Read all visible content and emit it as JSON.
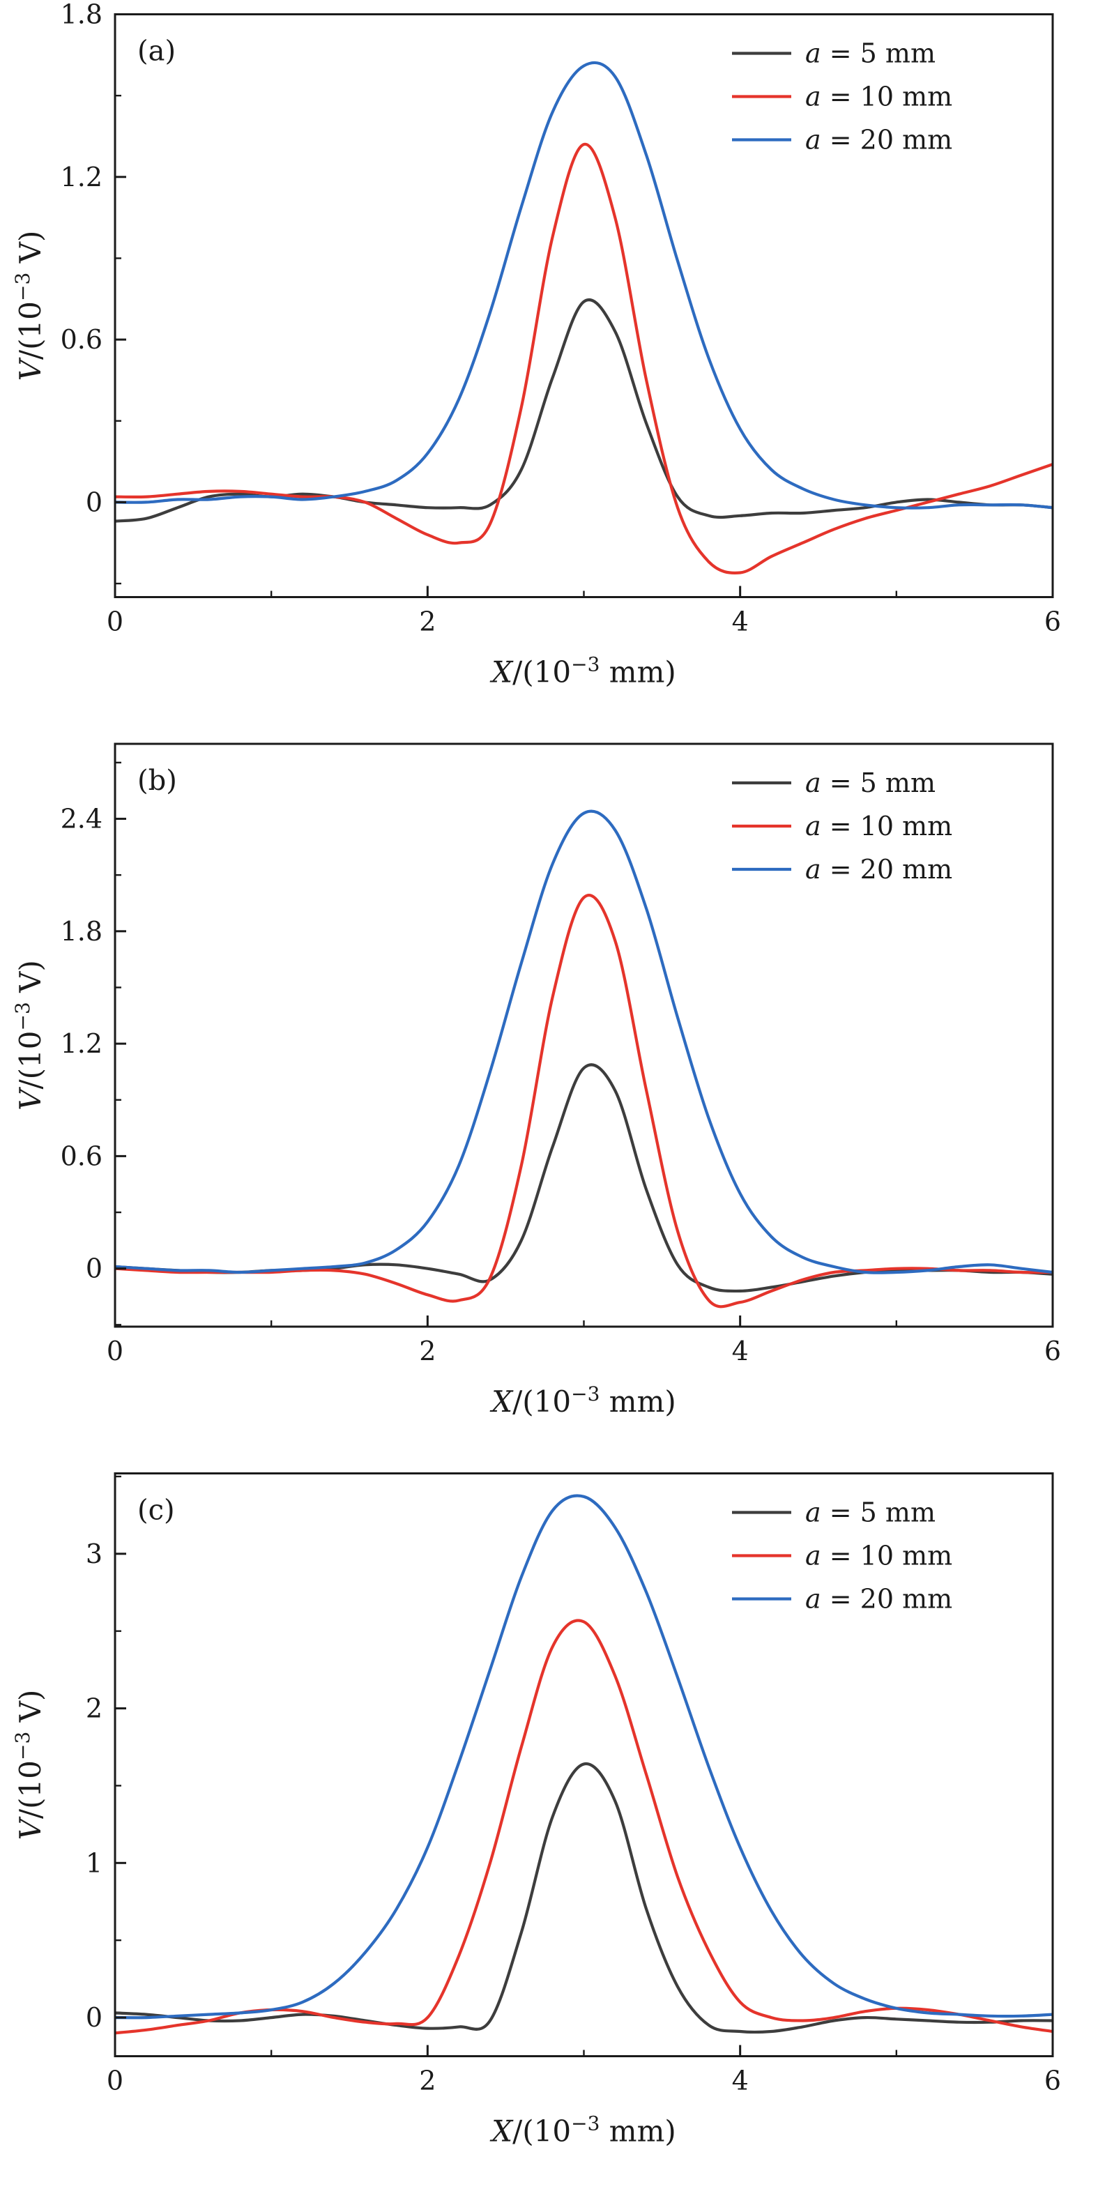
{
  "figure": {
    "background": "#ffffff",
    "frame_color": "#1a1a1a",
    "text_color": "#1a1a1a",
    "series_colors": {
      "a5": "#3d3d3d",
      "a10": "#e5342b",
      "a20": "#2d6bc0"
    }
  },
  "chart_data": [
    {
      "type": "line",
      "panel_label": "(a)",
      "xlabel": "X/(10⁻³ mm)",
      "ylabel": "V/(10⁻³ V)",
      "xlabel_rich": [
        {
          "text": "X",
          "italic": true
        },
        {
          "text": "/(10"
        },
        {
          "text": "−3",
          "sup": true
        },
        {
          "text": " mm)"
        }
      ],
      "ylabel_rich": [
        {
          "text": "V",
          "italic": true
        },
        {
          "text": "/(10"
        },
        {
          "text": "−3",
          "sup": true
        },
        {
          "text": " V)"
        }
      ],
      "xlim": [
        0,
        6
      ],
      "ylim": [
        -0.35,
        1.8
      ],
      "x_major_ticks": [
        0,
        2,
        4,
        6
      ],
      "x_tick_labels": [
        "0",
        "2",
        "4",
        "6"
      ],
      "x_minor_ticks": [
        1,
        3,
        5
      ],
      "y_major_ticks": [
        0,
        0.6,
        1.2,
        1.8
      ],
      "y_tick_labels": [
        "0",
        "0.6",
        "1.2",
        "1.8"
      ],
      "y_minor_ticks": [
        -0.3,
        0.3,
        0.9,
        1.5
      ],
      "legend_position": "top-right",
      "x": [
        0,
        0.2,
        0.4,
        0.6,
        0.8,
        1.0,
        1.2,
        1.4,
        1.6,
        1.8,
        2.0,
        2.2,
        2.4,
        2.6,
        2.8,
        3.0,
        3.2,
        3.4,
        3.6,
        3.8,
        4.0,
        4.2,
        4.4,
        4.6,
        4.8,
        5.0,
        5.2,
        5.4,
        5.6,
        5.8,
        6.0
      ],
      "series": [
        {
          "name": "a = 5 mm",
          "label_rich": [
            {
              "text": "a",
              "italic": true
            },
            {
              "text": " = 5 mm"
            }
          ],
          "color": "#3d3d3d",
          "values": [
            -0.07,
            -0.06,
            -0.02,
            0.02,
            0.03,
            0.02,
            0.03,
            0.02,
            0.0,
            -0.01,
            -0.02,
            -0.02,
            -0.01,
            0.12,
            0.46,
            0.74,
            0.63,
            0.29,
            0.02,
            -0.05,
            -0.05,
            -0.04,
            -0.04,
            -0.03,
            -0.02,
            0.0,
            0.01,
            0.0,
            -0.01,
            -0.01,
            -0.02
          ]
        },
        {
          "name": "a = 10 mm",
          "label_rich": [
            {
              "text": "a",
              "italic": true
            },
            {
              "text": " = 10 mm"
            }
          ],
          "color": "#e5342b",
          "values": [
            0.02,
            0.02,
            0.03,
            0.04,
            0.04,
            0.03,
            0.02,
            0.02,
            0.0,
            -0.06,
            -0.12,
            -0.15,
            -0.08,
            0.35,
            0.98,
            1.32,
            1.05,
            0.45,
            -0.02,
            -0.22,
            -0.26,
            -0.2,
            -0.15,
            -0.1,
            -0.06,
            -0.03,
            0.0,
            0.03,
            0.06,
            0.1,
            0.14
          ]
        },
        {
          "name": "a = 20 mm",
          "label_rich": [
            {
              "text": "a",
              "italic": true
            },
            {
              "text": " = 20 mm"
            }
          ],
          "color": "#2d6bc0",
          "values": [
            0.0,
            0.0,
            0.01,
            0.01,
            0.02,
            0.02,
            0.01,
            0.02,
            0.04,
            0.08,
            0.18,
            0.38,
            0.7,
            1.09,
            1.44,
            1.61,
            1.57,
            1.28,
            0.89,
            0.53,
            0.27,
            0.12,
            0.05,
            0.01,
            -0.01,
            -0.02,
            -0.02,
            -0.01,
            -0.01,
            -0.01,
            -0.02
          ]
        }
      ]
    },
    {
      "type": "line",
      "panel_label": "(b)",
      "xlabel": "X/(10⁻³ mm)",
      "ylabel": "V/(10⁻³ V)",
      "xlabel_rich": [
        {
          "text": "X",
          "italic": true
        },
        {
          "text": "/(10"
        },
        {
          "text": "−3",
          "sup": true
        },
        {
          "text": " mm)"
        }
      ],
      "ylabel_rich": [
        {
          "text": "V",
          "italic": true
        },
        {
          "text": "/(10"
        },
        {
          "text": "−3",
          "sup": true
        },
        {
          "text": " V)"
        }
      ],
      "xlim": [
        0,
        6
      ],
      "ylim": [
        -0.31,
        2.8
      ],
      "x_major_ticks": [
        0,
        2,
        4,
        6
      ],
      "x_tick_labels": [
        "0",
        "2",
        "4",
        "6"
      ],
      "x_minor_ticks": [
        1,
        3,
        5
      ],
      "y_major_ticks": [
        0,
        0.6,
        1.2,
        1.8,
        2.4
      ],
      "y_tick_labels": [
        "0",
        "0.6",
        "1.2",
        "1.8",
        "2.4"
      ],
      "y_minor_ticks": [
        -0.3,
        0.3,
        0.9,
        1.5,
        2.1,
        2.7
      ],
      "legend_position": "top-right",
      "x": [
        0,
        0.2,
        0.4,
        0.6,
        0.8,
        1.0,
        1.2,
        1.4,
        1.6,
        1.8,
        2.0,
        2.2,
        2.4,
        2.6,
        2.8,
        3.0,
        3.2,
        3.4,
        3.6,
        3.8,
        4.0,
        4.2,
        4.4,
        4.6,
        4.8,
        5.0,
        5.2,
        5.4,
        5.6,
        5.8,
        6.0
      ],
      "series": [
        {
          "name": "a = 5 mm",
          "label_rich": [
            {
              "text": "a",
              "italic": true
            },
            {
              "text": " = 5 mm"
            }
          ],
          "color": "#3d3d3d",
          "values": [
            0.01,
            0.0,
            -0.01,
            -0.02,
            -0.02,
            -0.01,
            -0.01,
            0.0,
            0.02,
            0.02,
            0.0,
            -0.03,
            -0.06,
            0.15,
            0.65,
            1.07,
            0.95,
            0.42,
            0.02,
            -0.1,
            -0.12,
            -0.1,
            -0.07,
            -0.04,
            -0.02,
            -0.01,
            -0.01,
            -0.01,
            -0.02,
            -0.02,
            -0.03
          ]
        },
        {
          "name": "a = 10 mm",
          "label_rich": [
            {
              "text": "a",
              "italic": true
            },
            {
              "text": " = 10 mm"
            }
          ],
          "color": "#e5342b",
          "values": [
            0.0,
            -0.01,
            -0.02,
            -0.02,
            -0.02,
            -0.02,
            -0.01,
            -0.01,
            -0.03,
            -0.08,
            -0.14,
            -0.17,
            -0.05,
            0.55,
            1.45,
            1.98,
            1.75,
            0.95,
            0.2,
            -0.17,
            -0.18,
            -0.12,
            -0.06,
            -0.02,
            -0.01,
            0.0,
            0.0,
            -0.01,
            -0.01,
            -0.02,
            -0.02
          ]
        },
        {
          "name": "a = 20 mm",
          "label_rich": [
            {
              "text": "a",
              "italic": true
            },
            {
              "text": " = 20 mm"
            }
          ],
          "color": "#2d6bc0",
          "values": [
            0.01,
            0.0,
            -0.01,
            -0.01,
            -0.02,
            -0.01,
            0.0,
            0.01,
            0.03,
            0.1,
            0.25,
            0.55,
            1.05,
            1.63,
            2.16,
            2.43,
            2.34,
            1.92,
            1.34,
            0.8,
            0.4,
            0.17,
            0.06,
            0.01,
            -0.02,
            -0.02,
            -0.01,
            0.01,
            0.02,
            0.0,
            -0.02
          ]
        }
      ]
    },
    {
      "type": "line",
      "panel_label": "(c)",
      "xlabel": "X/(10⁻³ mm)",
      "ylabel": "V/(10⁻³ V)",
      "xlabel_rich": [
        {
          "text": "X",
          "italic": true
        },
        {
          "text": "/(10"
        },
        {
          "text": "−3",
          "sup": true
        },
        {
          "text": " mm)"
        }
      ],
      "ylabel_rich": [
        {
          "text": "V",
          "italic": true
        },
        {
          "text": "/(10"
        },
        {
          "text": "−3",
          "sup": true
        },
        {
          "text": " V)"
        }
      ],
      "xlim": [
        0,
        6
      ],
      "ylim": [
        -0.25,
        3.52
      ],
      "x_major_ticks": [
        0,
        2,
        4,
        6
      ],
      "x_tick_labels": [
        "0",
        "2",
        "4",
        "6"
      ],
      "x_minor_ticks": [
        1,
        3,
        5
      ],
      "y_major_ticks": [
        0,
        1,
        2,
        3
      ],
      "y_tick_labels": [
        "0",
        "1",
        "2",
        "3"
      ],
      "y_minor_ticks": [
        0.5,
        1.5,
        2.5,
        3.5
      ],
      "legend_position": "top-right",
      "x": [
        0,
        0.2,
        0.4,
        0.6,
        0.8,
        1.0,
        1.2,
        1.4,
        1.6,
        1.8,
        2.0,
        2.2,
        2.4,
        2.6,
        2.8,
        3.0,
        3.2,
        3.4,
        3.6,
        3.8,
        4.0,
        4.2,
        4.4,
        4.6,
        4.8,
        5.0,
        5.2,
        5.4,
        5.6,
        5.8,
        6.0
      ],
      "series": [
        {
          "name": "a = 5 mm",
          "label_rich": [
            {
              "text": "a",
              "italic": true
            },
            {
              "text": " = 5 mm"
            }
          ],
          "color": "#3d3d3d",
          "values": [
            0.03,
            0.02,
            0.0,
            -0.02,
            -0.02,
            0.0,
            0.02,
            0.01,
            -0.02,
            -0.05,
            -0.07,
            -0.06,
            -0.02,
            0.55,
            1.3,
            1.64,
            1.4,
            0.7,
            0.2,
            -0.05,
            -0.09,
            -0.09,
            -0.06,
            -0.02,
            0.0,
            -0.01,
            -0.02,
            -0.03,
            -0.03,
            -0.02,
            -0.02
          ]
        },
        {
          "name": "a = 10 mm",
          "label_rich": [
            {
              "text": "a",
              "italic": true
            },
            {
              "text": " = 10 mm"
            }
          ],
          "color": "#e5342b",
          "values": [
            -0.1,
            -0.08,
            -0.05,
            -0.02,
            0.03,
            0.05,
            0.04,
            0.0,
            -0.03,
            -0.04,
            0.0,
            0.4,
            1.0,
            1.75,
            2.4,
            2.56,
            2.21,
            1.57,
            0.91,
            0.43,
            0.1,
            0.0,
            -0.02,
            0.0,
            0.04,
            0.06,
            0.05,
            0.02,
            -0.02,
            -0.06,
            -0.09
          ]
        },
        {
          "name": "a = 20 mm",
          "label_rich": [
            {
              "text": "a",
              "italic": true
            },
            {
              "text": " = 20 mm"
            }
          ],
          "color": "#2d6bc0",
          "values": [
            0.0,
            0.0,
            0.01,
            0.02,
            0.03,
            0.05,
            0.1,
            0.22,
            0.42,
            0.7,
            1.1,
            1.65,
            2.25,
            2.85,
            3.28,
            3.37,
            3.17,
            2.75,
            2.2,
            1.62,
            1.1,
            0.69,
            0.4,
            0.22,
            0.12,
            0.06,
            0.03,
            0.02,
            0.01,
            0.01,
            0.02
          ]
        }
      ]
    }
  ]
}
